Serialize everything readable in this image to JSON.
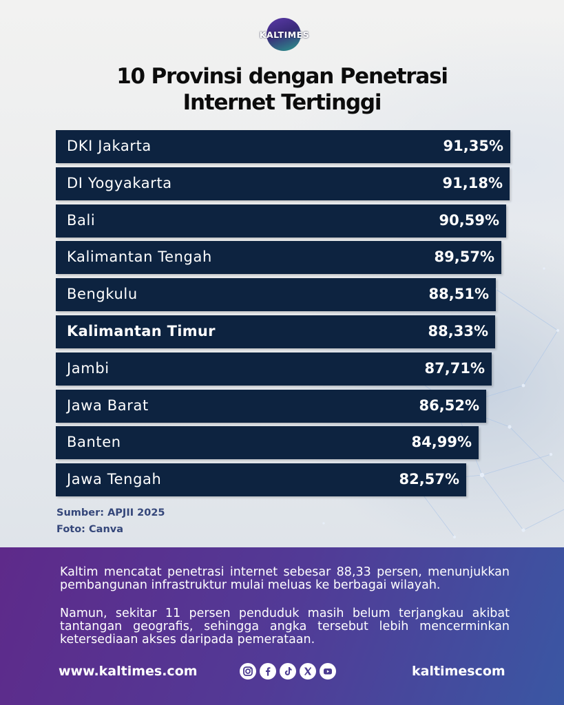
{
  "brand": {
    "logo_text": "KALTIMES"
  },
  "title_lines": [
    "10 Provinsi dengan Penetrasi",
    "Internet Tertinggi"
  ],
  "chart_data": {
    "type": "bar",
    "orientation": "horizontal",
    "title": "10 Provinsi dengan Penetrasi Internet Tertinggi",
    "xlabel": "",
    "ylabel": "",
    "unit": "%",
    "categories": [
      "DKI Jakarta",
      "DI Yogyakarta",
      "Bali",
      "Kalimantan Tengah",
      "Bengkulu",
      "Kalimantan Timur",
      "Jambi",
      "Jawa Barat",
      "Banten",
      "Jawa Tengah"
    ],
    "values": [
      91.35,
      91.18,
      90.59,
      89.57,
      88.51,
      88.33,
      87.71,
      86.52,
      84.99,
      82.57
    ],
    "value_labels": [
      "91,35%",
      "91,18%",
      "90,59%",
      "89,57%",
      "88,51%",
      "88,33%",
      "87,71%",
      "86,52%",
      "84,99%",
      "82,57%"
    ],
    "highlight": "Kalimantan Timur",
    "bar_color": "#0d2340",
    "grid": false,
    "legend": "none"
  },
  "source": {
    "line1": "Sumber: APJII 2025",
    "line2": "Foto: Canva"
  },
  "body_text": {
    "p1": "Kaltim mencatat penetrasi internet sebesar 88,33 persen, menunjukkan pembangunan infrastruktur mulai meluas ke berbagai wilayah.",
    "p2": "Namun, sekitar 11 persen penduduk masih belum terjangkau akibat tantangan geografis, sehingga angka tersebut lebih mencerminkan ketersediaan akses daripada pemerataan."
  },
  "footer": {
    "website": "www.kaltimes.com",
    "handle": "kaltimescom",
    "social_icons": [
      "instagram-icon",
      "facebook-icon",
      "tiktok-icon",
      "x-icon",
      "youtube-icon"
    ]
  },
  "colors": {
    "panel_start": "#5e2a8a",
    "panel_end": "#3a57a3",
    "bar": "#0d2340",
    "source_text": "#35477a"
  }
}
